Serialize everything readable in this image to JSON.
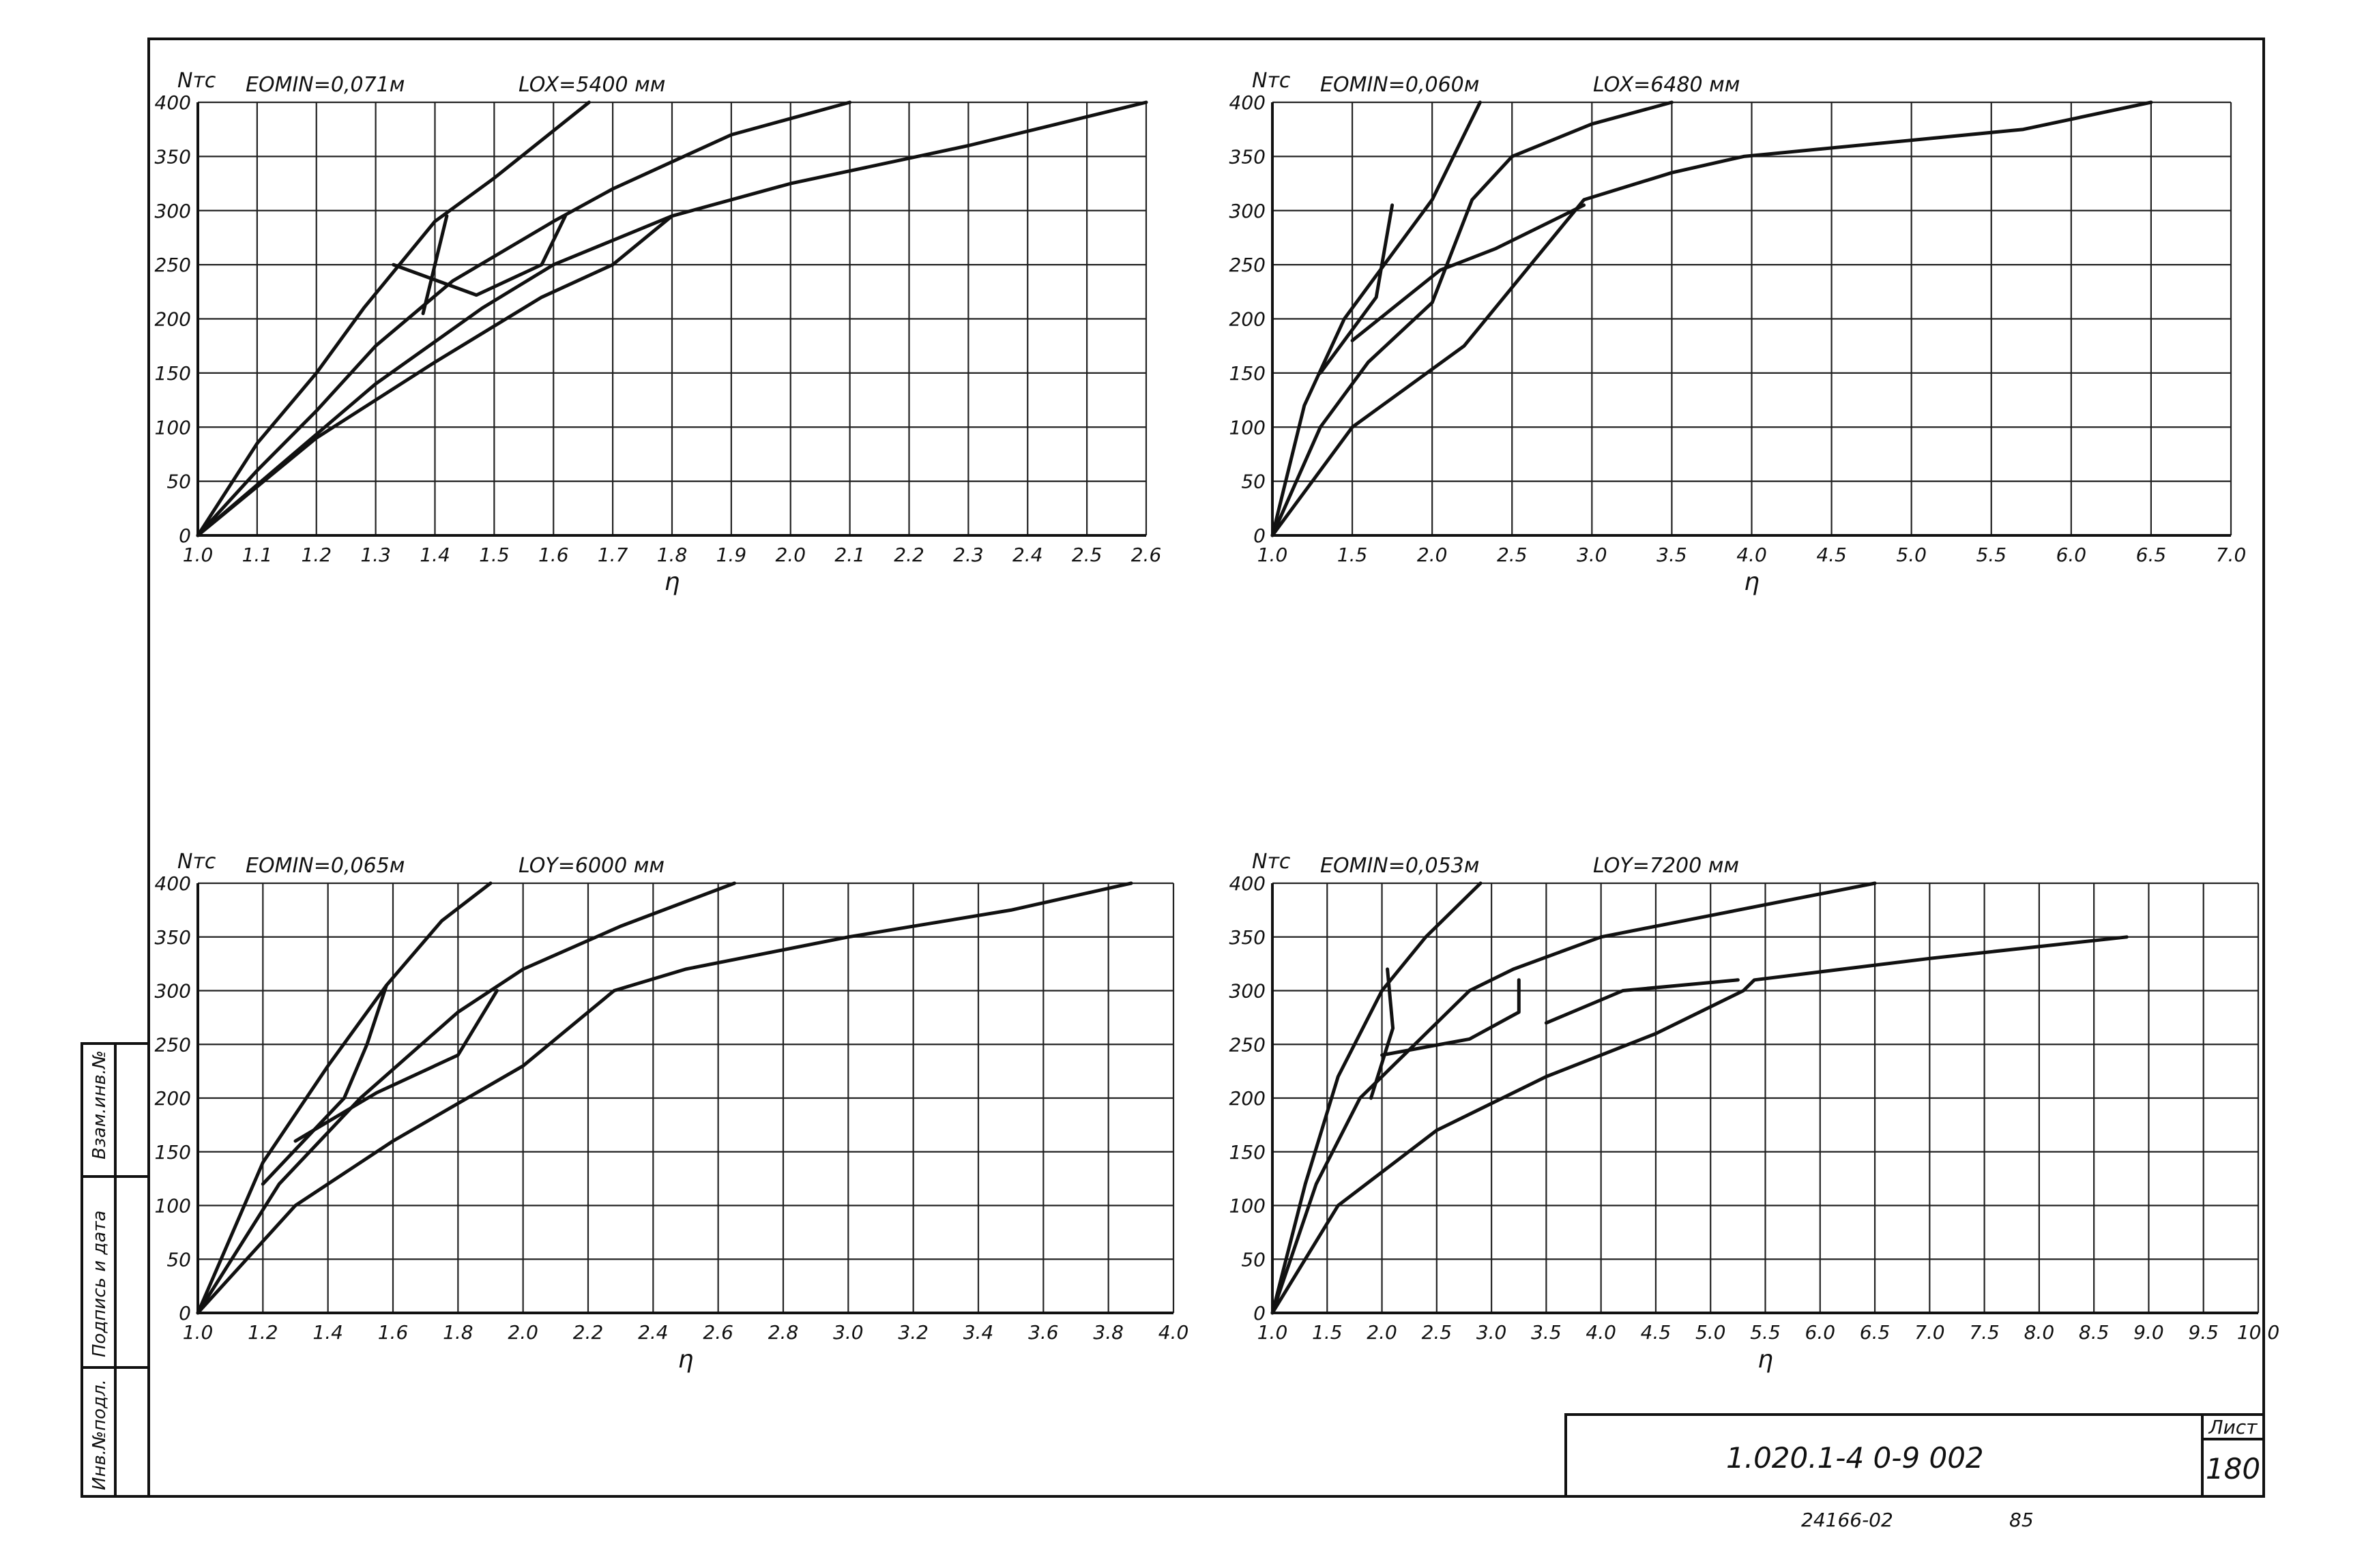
{
  "title_block": {
    "designation": "1.020.1-4  0-9  002",
    "sheet_label": "Лист",
    "sheet_number": "180",
    "below_left": "24166-02",
    "below_right": "85"
  },
  "side_stamp": [
    "Инв.№подл.",
    "Подпись и дата",
    "Взам.инв.№"
  ],
  "chart_data": [
    {
      "type": "line",
      "title": "",
      "ylabel": "Nтс",
      "param_e": "EOMIN=0,071м",
      "param_l": "LOX=5400 мм",
      "xlabel": "η",
      "x_ticks": [
        "1.0",
        "1.1",
        "1.2",
        "1.3",
        "1.4",
        "1.5",
        "1.6",
        "1.7",
        "1.8",
        "1.9",
        "2.0",
        "2.1",
        "2.2",
        "2.3",
        "2.4",
        "2.5",
        "2.6"
      ],
      "y_ticks": [
        "0",
        "50",
        "100",
        "150",
        "200",
        "250",
        "300",
        "350",
        "400"
      ],
      "xlim": [
        1.0,
        2.6
      ],
      "ylim": [
        0,
        400
      ],
      "series": [
        {
          "points": [
            [
              1.0,
              0
            ],
            [
              1.1,
              85
            ],
            [
              1.2,
              150
            ],
            [
              1.28,
              210
            ],
            [
              1.4,
              290
            ],
            [
              1.5,
              330
            ],
            [
              1.66,
              400
            ]
          ]
        },
        {
          "points": [
            [
              1.0,
              0
            ],
            [
              1.1,
              60
            ],
            [
              1.2,
              115
            ],
            [
              1.3,
              175
            ],
            [
              1.43,
              235
            ],
            [
              1.6,
              290
            ],
            [
              1.7,
              320
            ],
            [
              1.9,
              370
            ],
            [
              2.1,
              400
            ]
          ]
        },
        {
          "points": [
            [
              1.0,
              0
            ],
            [
              1.15,
              70
            ],
            [
              1.3,
              140
            ],
            [
              1.48,
              210
            ],
            [
              1.6,
              250
            ],
            [
              1.8,
              295
            ],
            [
              2.0,
              325
            ],
            [
              2.3,
              360
            ],
            [
              2.6,
              400
            ]
          ]
        },
        {
          "points": [
            [
              1.0,
              0
            ],
            [
              1.2,
              90
            ],
            [
              1.4,
              160
            ],
            [
              1.58,
              220
            ],
            [
              1.7,
              250
            ],
            [
              1.8,
              295
            ]
          ]
        },
        {
          "points": [
            [
              1.38,
              205
            ],
            [
              1.4,
              250
            ],
            [
              1.42,
              295
            ]
          ]
        },
        {
          "points": [
            [
              1.33,
              250
            ],
            [
              1.47,
              222
            ],
            [
              1.58,
              250
            ],
            [
              1.62,
              295
            ]
          ]
        }
      ]
    },
    {
      "type": "line",
      "title": "",
      "ylabel": "Nтс",
      "param_e": "EOMIN=0,060м",
      "param_l": "LOX=6480 мм",
      "xlabel": "η",
      "x_ticks": [
        "1.0",
        "1.5",
        "2.0",
        "2.5",
        "3.0",
        "3.5",
        "4.0",
        "4.5",
        "5.0",
        "5.5",
        "6.0",
        "6.5",
        "7.0"
      ],
      "y_ticks": [
        "0",
        "50",
        "100",
        "150",
        "200",
        "250",
        "300",
        "350",
        "400"
      ],
      "xlim": [
        1.0,
        7.0
      ],
      "ylim": [
        0,
        400
      ],
      "series": [
        {
          "points": [
            [
              1.0,
              0
            ],
            [
              1.2,
              120
            ],
            [
              1.45,
              200
            ],
            [
              1.7,
              250
            ],
            [
              2.0,
              310
            ],
            [
              2.3,
              400
            ]
          ]
        },
        {
          "points": [
            [
              1.0,
              0
            ],
            [
              1.3,
              100
            ],
            [
              1.6,
              160
            ],
            [
              2.0,
              215
            ],
            [
              2.25,
              310
            ],
            [
              2.5,
              350
            ],
            [
              3.0,
              380
            ],
            [
              3.5,
              400
            ]
          ]
        },
        {
          "points": [
            [
              1.0,
              0
            ],
            [
              1.5,
              100
            ],
            [
              2.2,
              175
            ],
            [
              2.95,
              310
            ],
            [
              3.5,
              335
            ],
            [
              3.95,
              350
            ],
            [
              5.0,
              365
            ],
            [
              5.7,
              375
            ],
            [
              6.5,
              400
            ]
          ]
        },
        {
          "points": [
            [
              1.3,
              150
            ],
            [
              1.65,
              220
            ],
            [
              1.75,
              305
            ]
          ]
        },
        {
          "points": [
            [
              1.5,
              180
            ],
            [
              2.05,
              245
            ],
            [
              2.4,
              265
            ],
            [
              2.95,
              305
            ]
          ]
        }
      ]
    },
    {
      "type": "line",
      "title": "",
      "ylabel": "Nтс",
      "param_e": "EOMIN=0,065м",
      "param_l": "LOY=6000 мм",
      "xlabel": "η",
      "x_ticks": [
        "1.0",
        "1.2",
        "1.4",
        "1.6",
        "1.8",
        "2.0",
        "2.2",
        "2.4",
        "2.6",
        "2.8",
        "3.0",
        "3.2",
        "3.4",
        "3.6",
        "3.8",
        "4.0"
      ],
      "y_ticks": [
        "0",
        "50",
        "100",
        "150",
        "200",
        "250",
        "300",
        "350",
        "400"
      ],
      "xlim": [
        1.0,
        4.0
      ],
      "ylim": [
        0,
        400
      ],
      "series": [
        {
          "points": [
            [
              1.0,
              0
            ],
            [
              1.2,
              140
            ],
            [
              1.4,
              230
            ],
            [
              1.58,
              305
            ],
            [
              1.75,
              365
            ],
            [
              1.9,
              400
            ]
          ]
        },
        {
          "points": [
            [
              1.0,
              0
            ],
            [
              1.25,
              120
            ],
            [
              1.5,
              200
            ],
            [
              1.8,
              280
            ],
            [
              2.0,
              320
            ],
            [
              2.3,
              360
            ],
            [
              2.65,
              400
            ]
          ]
        },
        {
          "points": [
            [
              1.0,
              0
            ],
            [
              1.3,
              100
            ],
            [
              1.6,
              160
            ],
            [
              2.0,
              230
            ],
            [
              2.28,
              300
            ],
            [
              2.5,
              320
            ],
            [
              3.0,
              350
            ],
            [
              3.5,
              375
            ],
            [
              3.87,
              400
            ]
          ]
        },
        {
          "points": [
            [
              1.2,
              120
            ],
            [
              1.45,
              200
            ],
            [
              1.52,
              250
            ],
            [
              1.58,
              305
            ]
          ]
        },
        {
          "points": [
            [
              1.3,
              160
            ],
            [
              1.55,
              205
            ],
            [
              1.8,
              240
            ],
            [
              1.92,
              300
            ]
          ]
        }
      ]
    },
    {
      "type": "line",
      "title": "",
      "ylabel": "Nтс",
      "param_e": "EOMIN=0,053м",
      "param_l": "LOY=7200 мм",
      "xlabel": "η",
      "x_ticks": [
        "1.0",
        "1.5",
        "2.0",
        "2.5",
        "3.0",
        "3.5",
        "4.0",
        "4.5",
        "5.0",
        "5.5",
        "6.0",
        "6.5",
        "7.0",
        "7.5",
        "8.0",
        "8.5",
        "9.0",
        "9.5",
        "10.0"
      ],
      "y_ticks": [
        "0",
        "50",
        "100",
        "150",
        "200",
        "250",
        "300",
        "350",
        "400"
      ],
      "xlim": [
        1.0,
        10.0
      ],
      "ylim": [
        0,
        400
      ],
      "series": [
        {
          "points": [
            [
              1.0,
              0
            ],
            [
              1.3,
              120
            ],
            [
              1.6,
              220
            ],
            [
              2.0,
              300
            ],
            [
              2.4,
              350
            ],
            [
              2.9,
              400
            ]
          ]
        },
        {
          "points": [
            [
              1.0,
              0
            ],
            [
              1.4,
              120
            ],
            [
              1.8,
              200
            ],
            [
              2.3,
              250
            ],
            [
              2.8,
              300
            ],
            [
              3.2,
              320
            ],
            [
              4.0,
              350
            ],
            [
              5.0,
              370
            ],
            [
              6.5,
              400
            ]
          ]
        },
        {
          "points": [
            [
              1.0,
              0
            ],
            [
              1.6,
              100
            ],
            [
              2.5,
              170
            ],
            [
              3.5,
              220
            ],
            [
              4.5,
              260
            ],
            [
              5.3,
              300
            ],
            [
              5.4,
              310
            ],
            [
              7.0,
              330
            ],
            [
              8.8,
              350
            ]
          ]
        },
        {
          "points": [
            [
              1.9,
              200
            ],
            [
              2.1,
              265
            ],
            [
              2.05,
              320
            ]
          ]
        },
        {
          "points": [
            [
              2.0,
              240
            ],
            [
              2.8,
              255
            ],
            [
              3.25,
              280
            ],
            [
              3.25,
              310
            ]
          ]
        },
        {
          "points": [
            [
              3.5,
              270
            ],
            [
              4.2,
              300
            ],
            [
              5.25,
              310
            ]
          ]
        }
      ]
    }
  ]
}
